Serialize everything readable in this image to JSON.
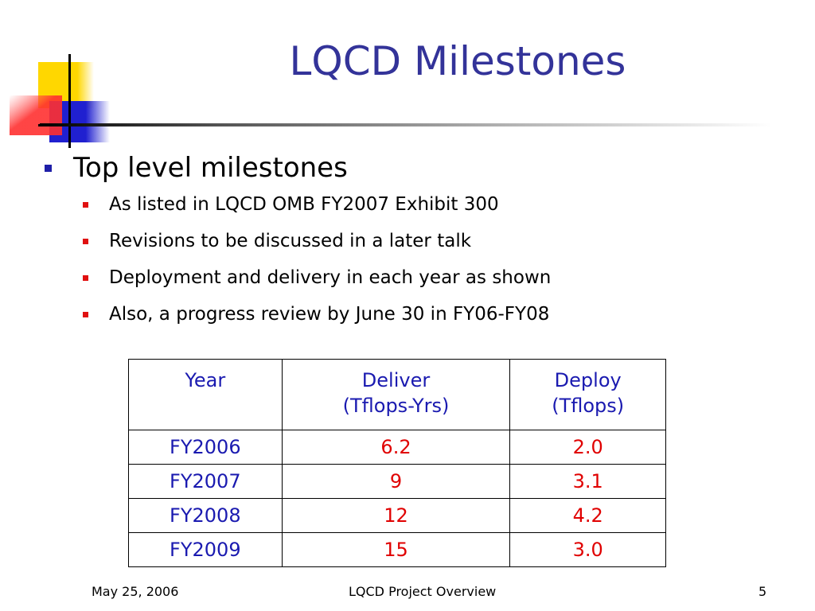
{
  "slide": {
    "title": "LQCD Milestones",
    "bullets": [
      {
        "level": 1,
        "text": "Top level milestones"
      },
      {
        "level": 2,
        "text": "As listed in LQCD OMB FY2007 Exhibit 300"
      },
      {
        "level": 2,
        "text": "Revisions to be discussed in a later talk"
      },
      {
        "level": 2,
        "text": "Deployment and delivery in each year as shown"
      },
      {
        "level": 2,
        "text": "Also, a progress review by June 30 in FY06-FY08"
      }
    ]
  },
  "table": {
    "headers": [
      {
        "line1": "Year",
        "line2": ""
      },
      {
        "line1": "Deliver",
        "line2": "(Tflops-Yrs)"
      },
      {
        "line1": "Deploy",
        "line2": "(Tflops)"
      }
    ],
    "rows": [
      {
        "year": "FY2006",
        "deliver": "6.2",
        "deploy": "2.0"
      },
      {
        "year": "FY2007",
        "deliver": "9",
        "deploy": "3.1"
      },
      {
        "year": "FY2008",
        "deliver": "12",
        "deploy": "4.2"
      },
      {
        "year": "FY2009",
        "deliver": "15",
        "deploy": "3.0"
      }
    ]
  },
  "footer": {
    "date": "May 25, 2006",
    "center": "LQCD Project Overview",
    "page": "5"
  },
  "colors": {
    "title": "#333399",
    "header_text": "#1a1ab0",
    "value_text": "#e00000",
    "level1_bullet": "#1f1fa8",
    "level2_bullet": "#e01010"
  }
}
